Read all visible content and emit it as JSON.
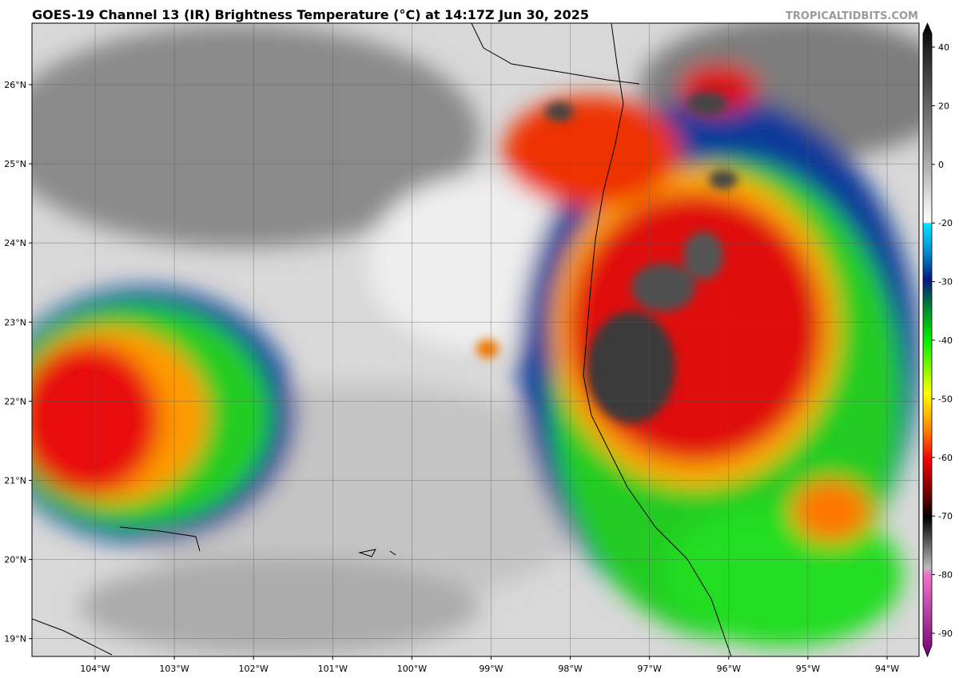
{
  "header": {
    "title": "GOES-19 Channel 13 (IR) Brightness Temperature (°C) at 14:17Z Jun 30, 2025",
    "watermark": "TROPICALTIDBITS.COM"
  },
  "map": {
    "longitudes": [
      "104°W",
      "103°W",
      "102°W",
      "101°W",
      "100°W",
      "99°W",
      "98°W",
      "97°W",
      "96°W",
      "95°W",
      "94°W"
    ],
    "latitudes": [
      "26°N",
      "25°N",
      "24°N",
      "23°N",
      "22°N",
      "21°N",
      "20°N",
      "19°N"
    ]
  },
  "colorbar": {
    "ticks": [
      40,
      20,
      0,
      -20,
      -30,
      -40,
      -50,
      -60,
      -70,
      -80,
      -90
    ]
  }
}
